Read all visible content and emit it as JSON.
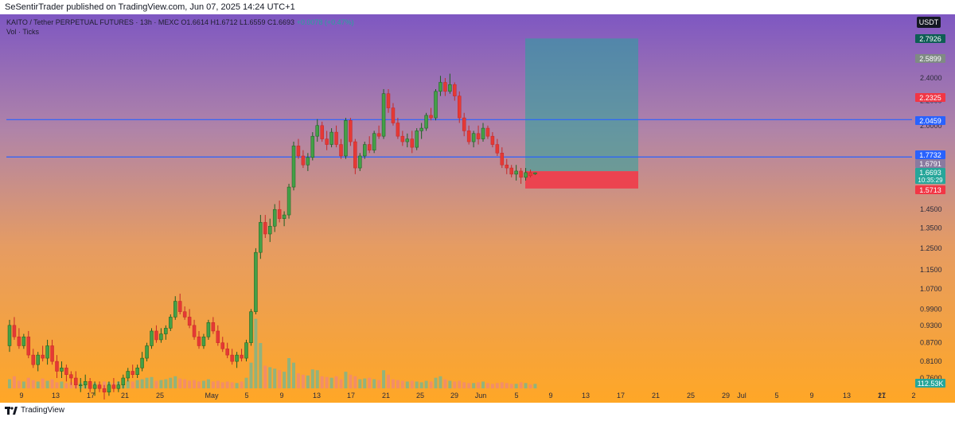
{
  "header": {
    "publisher": "SeSentirTrader published on TradingView.com, Jun 07, 2025 14:24 UTC+1"
  },
  "legend": {
    "symbol_line": "KAITO / Tether PERPETUAL FUTURES · 13h · MEXC",
    "ohlc": "O1.6614 H1.6712 L1.6559 C1.6693",
    "change": "+0.0078 (+0.47%)",
    "vol_line": "Vol · Ticks"
  },
  "currency_badge": "USDT",
  "footer": {
    "brand": "TradingView"
  },
  "colors": {
    "up": "#26a69a",
    "down": "#ef5350",
    "hline": "#2962ff",
    "target_zone": "#26a69a",
    "stop_zone": "#f23645"
  },
  "chart_data": {
    "type": "candlestick",
    "y_axis": {
      "scale": "log",
      "ticks": [
        "0.7600",
        "0.8100",
        "0.8700",
        "0.9300",
        "0.9900",
        "1.0700",
        "1.1500",
        "1.2500",
        "1.3500",
        "1.4500",
        "2.0000",
        "2.2000",
        "2.4000"
      ]
    },
    "x_axis": {
      "ticks": [
        "9",
        "13",
        "17",
        "21",
        "25",
        "May",
        "5",
        "9",
        "13",
        "17",
        "21",
        "25",
        "29",
        "Jun",
        "5",
        "9",
        "13",
        "17",
        "21",
        "25",
        "29",
        "Jul",
        "5",
        "9",
        "13",
        "17",
        "21",
        "2"
      ]
    },
    "price_labels": [
      {
        "value": "2.7926",
        "color": "#0e5e55"
      },
      {
        "value": "2.5899",
        "color": "#7f8a84"
      },
      {
        "value": "2.2325",
        "color": "#f23645"
      },
      {
        "value": "2.0459",
        "color": "#2962ff"
      },
      {
        "value": "1.7732",
        "color": "#2962ff"
      },
      {
        "value": "1.6791",
        "color": "#8a7aa0"
      },
      {
        "value": "1.6693",
        "color": "#26a69a",
        "sub": "10:35:29"
      },
      {
        "value": "1.5713",
        "color": "#f23645"
      },
      {
        "value": "112.53K",
        "color": "#26a69a"
      }
    ],
    "horizontal_lines": [
      2.0459,
      1.7732
    ],
    "position": {
      "type": "long",
      "entry": 1.6791,
      "target": 2.7926,
      "stop": 1.5713
    },
    "candles": [
      [
        0.86,
        0.95,
        0.84,
        0.93
      ],
      [
        0.93,
        0.96,
        0.88,
        0.89
      ],
      [
        0.89,
        0.92,
        0.85,
        0.86
      ],
      [
        0.86,
        0.9,
        0.85,
        0.89
      ],
      [
        0.89,
        0.91,
        0.82,
        0.83
      ],
      [
        0.83,
        0.85,
        0.79,
        0.8
      ],
      [
        0.8,
        0.84,
        0.78,
        0.83
      ],
      [
        0.83,
        0.86,
        0.81,
        0.82
      ],
      [
        0.82,
        0.88,
        0.8,
        0.86
      ],
      [
        0.86,
        0.88,
        0.8,
        0.81
      ],
      [
        0.81,
        0.83,
        0.76,
        0.78
      ],
      [
        0.78,
        0.81,
        0.76,
        0.79
      ],
      [
        0.79,
        0.8,
        0.75,
        0.77
      ],
      [
        0.77,
        0.78,
        0.74,
        0.76
      ],
      [
        0.76,
        0.78,
        0.73,
        0.74
      ],
      [
        0.74,
        0.76,
        0.72,
        0.74
      ],
      [
        0.74,
        0.77,
        0.73,
        0.75
      ],
      [
        0.75,
        0.76,
        0.72,
        0.73
      ],
      [
        0.73,
        0.75,
        0.71,
        0.74
      ],
      [
        0.74,
        0.75,
        0.72,
        0.73
      ],
      [
        0.73,
        0.74,
        0.7,
        0.72
      ],
      [
        0.72,
        0.75,
        0.71,
        0.74
      ],
      [
        0.74,
        0.76,
        0.72,
        0.73
      ],
      [
        0.73,
        0.75,
        0.72,
        0.74
      ],
      [
        0.74,
        0.77,
        0.73,
        0.76
      ],
      [
        0.76,
        0.79,
        0.75,
        0.78
      ],
      [
        0.78,
        0.8,
        0.76,
        0.77
      ],
      [
        0.77,
        0.8,
        0.76,
        0.79
      ],
      [
        0.79,
        0.84,
        0.78,
        0.82
      ],
      [
        0.82,
        0.87,
        0.81,
        0.86
      ],
      [
        0.86,
        0.92,
        0.85,
        0.91
      ],
      [
        0.91,
        0.93,
        0.87,
        0.88
      ],
      [
        0.88,
        0.92,
        0.87,
        0.9
      ],
      [
        0.9,
        0.93,
        0.88,
        0.92
      ],
      [
        0.92,
        0.97,
        0.91,
        0.96
      ],
      [
        0.96,
        1.04,
        0.95,
        1.02
      ],
      [
        1.02,
        1.05,
        0.97,
        0.98
      ],
      [
        0.98,
        1.0,
        0.95,
        0.96
      ],
      [
        0.96,
        0.99,
        0.92,
        0.93
      ],
      [
        0.93,
        0.95,
        0.88,
        0.89
      ],
      [
        0.89,
        0.91,
        0.85,
        0.86
      ],
      [
        0.86,
        0.9,
        0.85,
        0.89
      ],
      [
        0.89,
        0.95,
        0.88,
        0.94
      ],
      [
        0.94,
        0.96,
        0.9,
        0.91
      ],
      [
        0.91,
        0.93,
        0.86,
        0.87
      ],
      [
        0.87,
        0.89,
        0.84,
        0.85
      ],
      [
        0.85,
        0.87,
        0.82,
        0.83
      ],
      [
        0.83,
        0.85,
        0.8,
        0.81
      ],
      [
        0.81,
        0.84,
        0.79,
        0.83
      ],
      [
        0.83,
        0.85,
        0.81,
        0.82
      ],
      [
        0.82,
        0.88,
        0.81,
        0.87
      ],
      [
        0.87,
        0.99,
        0.86,
        0.98
      ],
      [
        0.98,
        1.25,
        0.97,
        1.23
      ],
      [
        1.23,
        1.42,
        1.2,
        1.38
      ],
      [
        1.38,
        1.42,
        1.3,
        1.32
      ],
      [
        1.32,
        1.4,
        1.28,
        1.36
      ],
      [
        1.36,
        1.48,
        1.33,
        1.45
      ],
      [
        1.45,
        1.5,
        1.38,
        1.4
      ],
      [
        1.4,
        1.44,
        1.36,
        1.42
      ],
      [
        1.42,
        1.6,
        1.4,
        1.58
      ],
      [
        1.58,
        1.88,
        1.56,
        1.85
      ],
      [
        1.85,
        1.9,
        1.76,
        1.78
      ],
      [
        1.78,
        1.82,
        1.7,
        1.72
      ],
      [
        1.72,
        1.8,
        1.68,
        1.77
      ],
      [
        1.77,
        1.95,
        1.75,
        1.92
      ],
      [
        1.92,
        2.05,
        1.88,
        2.0
      ],
      [
        2.0,
        2.03,
        1.88,
        1.9
      ],
      [
        1.9,
        1.96,
        1.82,
        1.86
      ],
      [
        1.86,
        1.98,
        1.84,
        1.95
      ],
      [
        1.95,
        2.0,
        1.84,
        1.86
      ],
      [
        1.86,
        1.9,
        1.76,
        1.78
      ],
      [
        1.78,
        2.06,
        1.76,
        2.04
      ],
      [
        2.04,
        2.06,
        1.85,
        1.88
      ],
      [
        1.88,
        1.9,
        1.66,
        1.7
      ],
      [
        1.7,
        1.8,
        1.68,
        1.78
      ],
      [
        1.78,
        1.88,
        1.76,
        1.86
      ],
      [
        1.86,
        1.92,
        1.8,
        1.82
      ],
      [
        1.82,
        1.96,
        1.8,
        1.94
      ],
      [
        1.94,
        2.0,
        1.9,
        1.92
      ],
      [
        1.92,
        2.3,
        1.9,
        2.26
      ],
      [
        2.26,
        2.3,
        2.1,
        2.14
      ],
      [
        2.14,
        2.18,
        2.0,
        2.02
      ],
      [
        2.02,
        2.06,
        1.9,
        1.92
      ],
      [
        1.92,
        1.96,
        1.85,
        1.88
      ],
      [
        1.88,
        1.94,
        1.84,
        1.9
      ],
      [
        1.9,
        1.96,
        1.8,
        1.84
      ],
      [
        1.84,
        1.98,
        1.82,
        1.96
      ],
      [
        1.96,
        2.02,
        1.9,
        1.98
      ],
      [
        1.98,
        2.1,
        1.96,
        2.08
      ],
      [
        2.08,
        2.14,
        2.04,
        2.06
      ],
      [
        2.06,
        2.3,
        2.04,
        2.28
      ],
      [
        2.28,
        2.42,
        2.24,
        2.36
      ],
      [
        2.36,
        2.4,
        2.24,
        2.28
      ],
      [
        2.28,
        2.44,
        2.26,
        2.34
      ],
      [
        2.34,
        2.36,
        2.2,
        2.24
      ],
      [
        2.24,
        2.28,
        2.02,
        2.06
      ],
      [
        2.06,
        2.1,
        1.92,
        1.96
      ],
      [
        1.96,
        2.0,
        1.86,
        1.88
      ],
      [
        1.88,
        1.96,
        1.84,
        1.94
      ],
      [
        1.94,
        2.0,
        1.86,
        1.9
      ],
      [
        1.9,
        2.02,
        1.88,
        1.98
      ],
      [
        1.98,
        2.0,
        1.9,
        1.92
      ],
      [
        1.92,
        1.95,
        1.84,
        1.86
      ],
      [
        1.86,
        1.9,
        1.78,
        1.8
      ],
      [
        1.8,
        1.84,
        1.7,
        1.72
      ],
      [
        1.72,
        1.76,
        1.66,
        1.7
      ],
      [
        1.7,
        1.72,
        1.64,
        1.66
      ],
      [
        1.66,
        1.72,
        1.62,
        1.68
      ],
      [
        1.68,
        1.7,
        1.6,
        1.64
      ],
      [
        1.64,
        1.7,
        1.62,
        1.67
      ],
      [
        1.67,
        1.69,
        1.64,
        1.65
      ],
      [
        1.6614,
        1.6712,
        1.6559,
        1.6693
      ]
    ],
    "volume": [
      12,
      16,
      10,
      9,
      14,
      11,
      9,
      13,
      10,
      12,
      8,
      9,
      7,
      8,
      10,
      7,
      6,
      8,
      7,
      6,
      9,
      8,
      7,
      9,
      8,
      10,
      9,
      11,
      12,
      14,
      15,
      10,
      11,
      12,
      14,
      16,
      13,
      12,
      10,
      11,
      9,
      10,
      12,
      9,
      10,
      8,
      9,
      8,
      7,
      9,
      14,
      34,
      92,
      60,
      30,
      28,
      26,
      24,
      22,
      40,
      34,
      20,
      18,
      17,
      25,
      24,
      16,
      15,
      14,
      16,
      12,
      22,
      18,
      16,
      12,
      13,
      14,
      12,
      11,
      24,
      18,
      12,
      11,
      10,
      9,
      10,
      9,
      8,
      10,
      9,
      14,
      16,
      12,
      10,
      9,
      10,
      8,
      7,
      7,
      8,
      9,
      7,
      6,
      7,
      8,
      7,
      6,
      6,
      8,
      7,
      5,
      6
    ]
  }
}
